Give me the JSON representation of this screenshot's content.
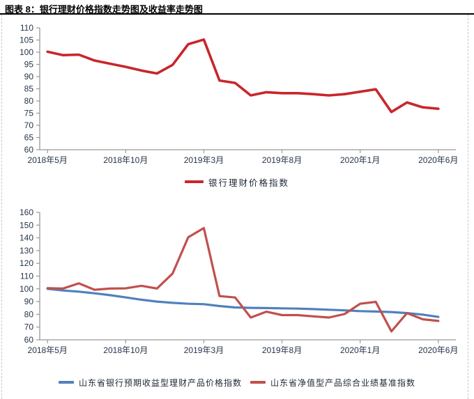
{
  "page": {
    "title": "图表 8：银行理财价格指数走势图及收益率走势图"
  },
  "chart_data": [
    {
      "type": "line",
      "title": "银行理财价格指数走势图",
      "xlabel": "",
      "ylabel": "",
      "ylim": [
        60,
        110
      ],
      "ytick_step": 5,
      "grid": false,
      "legend_position": "bottom",
      "x_unit": "month",
      "n_points": 26,
      "x_range": [
        "2018年5月",
        "2020年6月"
      ],
      "x_tick_labels": [
        "2018年5月",
        "2018年10月",
        "2019年3月",
        "2019年8月",
        "2020年1月",
        "2020年6月"
      ],
      "x_tick_positions": [
        0,
        5,
        10,
        15,
        20,
        25
      ],
      "series": [
        {
          "name": "银行理财价格指数",
          "color": "#C8262B",
          "values": [
            100.2,
            98.8,
            99.0,
            96.6,
            95.3,
            94.0,
            92.5,
            91.3,
            94.8,
            103.3,
            105.2,
            88.4,
            87.4,
            82.3,
            83.6,
            83.2,
            83.2,
            82.8,
            82.3,
            82.8,
            83.8,
            84.8,
            75.5,
            79.4,
            77.4,
            76.8
          ]
        }
      ]
    },
    {
      "type": "line",
      "title": "收益率走势图",
      "xlabel": "",
      "ylabel": "",
      "ylim": [
        60,
        160
      ],
      "ytick_step": 10,
      "grid": false,
      "legend_position": "bottom",
      "x_unit": "month",
      "n_points": 26,
      "x_range": [
        "2018年5月",
        "2020年6月"
      ],
      "x_tick_labels": [
        "2018年5月",
        "2018年10月",
        "2019年3月",
        "2019年8月",
        "2020年1月",
        "2020年6月"
      ],
      "x_tick_positions": [
        0,
        5,
        10,
        15,
        20,
        25
      ],
      "series": [
        {
          "name": "山东省银行预期收益型理财产品价格指数",
          "color": "#4F81BD",
          "values": [
            100.0,
            98.7,
            97.8,
            96.5,
            95.0,
            93.3,
            91.5,
            90.0,
            89.0,
            88.3,
            88.0,
            86.5,
            85.4,
            85.1,
            84.9,
            84.7,
            84.5,
            84.1,
            83.6,
            83.1,
            82.5,
            82.2,
            81.8,
            81.0,
            79.8,
            78.0
          ]
        },
        {
          "name": "山东省净值型产品综合业绩基准指数",
          "color": "#C0504D",
          "values": [
            100.5,
            100.3,
            104.3,
            99.3,
            100.2,
            100.4,
            102.4,
            100.3,
            112.0,
            140.5,
            147.7,
            94.3,
            93.2,
            77.5,
            82.1,
            79.4,
            79.4,
            78.4,
            77.5,
            80.2,
            88.3,
            89.8,
            66.6,
            81.0,
            76.1,
            74.8
          ]
        }
      ]
    }
  ],
  "style": {
    "axis_color": "#999999",
    "tick_label_color": "#25344a"
  }
}
